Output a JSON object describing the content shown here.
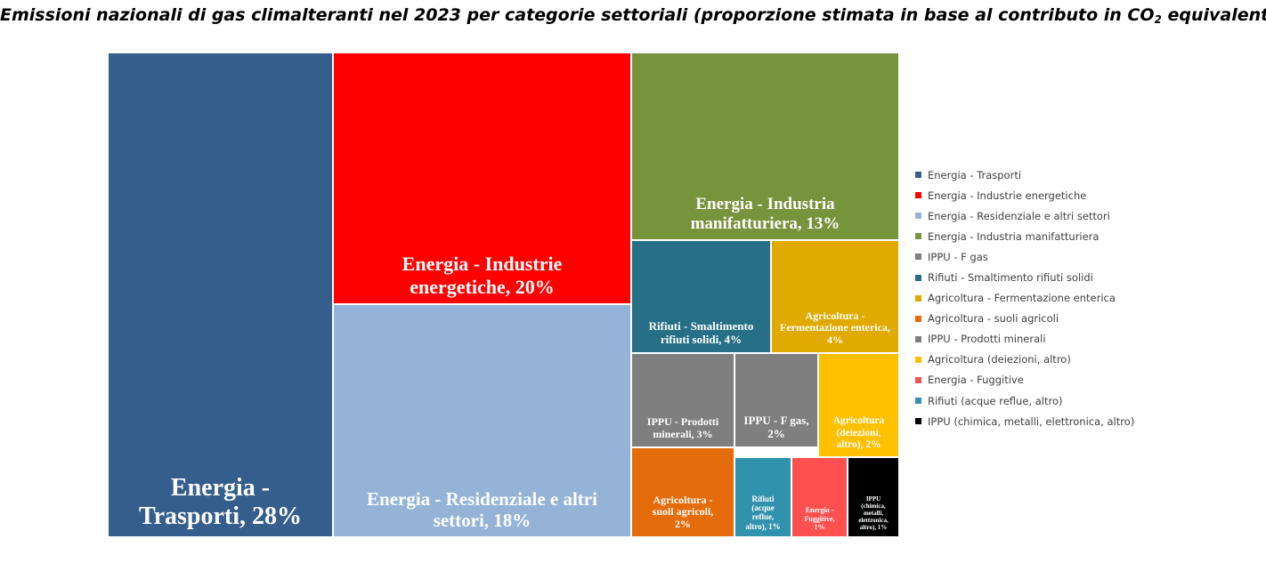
{
  "title": {
    "main": "Emissioni nazionali di gas climalteranti nel 2023 per categorie settoriali (proporzione stimata in base al contributo in CO",
    "sub": "2",
    "tail": " equivalente)"
  },
  "chart_data": {
    "type": "treemap",
    "legend_position": "right",
    "items": [
      {
        "name": "Energia - Trasporti",
        "label": "Energia -\nTrasporti, 28%",
        "value": 28,
        "color": "#355E8D"
      },
      {
        "name": "Energia - Industrie energetiche",
        "label": "Energia - Industrie\nenergetiche, 20%",
        "value": 20,
        "color": "#FF0000"
      },
      {
        "name": "Energia - Residenziale e altri settori",
        "label": "Energia - Residenziale e altri\nsettori, 18%",
        "value": 18,
        "color": "#95B3D7"
      },
      {
        "name": "Energia - Industria manifatturiera",
        "label": "Energia - Industria\nmanifatturiera, 13%",
        "value": 13,
        "color": "#77933C"
      },
      {
        "name": "Rifiuti - Smaltimento rifiuti solidi",
        "label": "Rifiuti - Smaltimento\nrifiuti solidi, 4%",
        "value": 4,
        "color": "#276F86"
      },
      {
        "name": "Agricoltura - Fermentazione enterica",
        "label": "Agricoltura -\nFermentazione enterica,\n4%",
        "value": 4,
        "color": "#E0AA00"
      },
      {
        "name": "IPPU - Prodotti minerali",
        "label": "IPPU - Prodotti\nminerali, 3%",
        "value": 3,
        "color": "#7F7F7F"
      },
      {
        "name": "IPPU - F gas",
        "label": "IPPU - F gas,\n2%",
        "value": 2,
        "color": "#7F7F7F"
      },
      {
        "name": "Agricoltura (deiezioni, altro)",
        "label": "Agricoltura\n(deiezioni,\naltro), 2%",
        "value": 2,
        "color": "#FFC000"
      },
      {
        "name": "Agricoltura - suoli agricoli",
        "label": "Agricoltura -\nsuoli agricoli,\n2%",
        "value": 2,
        "color": "#E46C0A"
      },
      {
        "name": "Rifiuti (acque reflue, altro)",
        "label": "Rifiuti\n(acque\nreflue,\naltro), 1%",
        "value": 1,
        "color": "#3192AE"
      },
      {
        "name": "Energia - Fuggitive",
        "label": "Energia -\nFuggitive,\n1%",
        "value": 1,
        "color": "#FF5050"
      },
      {
        "name": "IPPU (chimica, metalli, elettronica, altro)",
        "label": "IPPU\n(chimica,\nmetalli,\nelettronica,\naltro), 1%",
        "value": 1,
        "color": "#000000"
      }
    ],
    "legend": [
      {
        "label": "Energia - Trasporti",
        "color": "#355E8D"
      },
      {
        "label": "Energia - Industrie energetiche",
        "color": "#FF0000"
      },
      {
        "label": "Energia - Residenziale e altri settori",
        "color": "#95B3D7"
      },
      {
        "label": "Energia - Industria manifatturiera",
        "color": "#77933C"
      },
      {
        "label": "IPPU - F gas",
        "color": "#7F7F7F"
      },
      {
        "label": "Rifiuti - Smaltimento rifiuti solidi",
        "color": "#276F86"
      },
      {
        "label": "Agricoltura - Fermentazione enterica",
        "color": "#E0AA00"
      },
      {
        "label": "Agricoltura - suoli agricoli",
        "color": "#E46C0A"
      },
      {
        "label": "IPPU - Prodotti minerali",
        "color": "#7F7F7F"
      },
      {
        "label": "Agricoltura (deiezioni, altro)",
        "color": "#FFC000"
      },
      {
        "label": "Energia - Fuggitive",
        "color": "#FF5050"
      },
      {
        "label": "Rifiuti (acque reflue, altro)",
        "color": "#3192AE"
      },
      {
        "label": "IPPU (chimica, metalli, elettronica, altro)",
        "color": "#000000"
      }
    ]
  }
}
